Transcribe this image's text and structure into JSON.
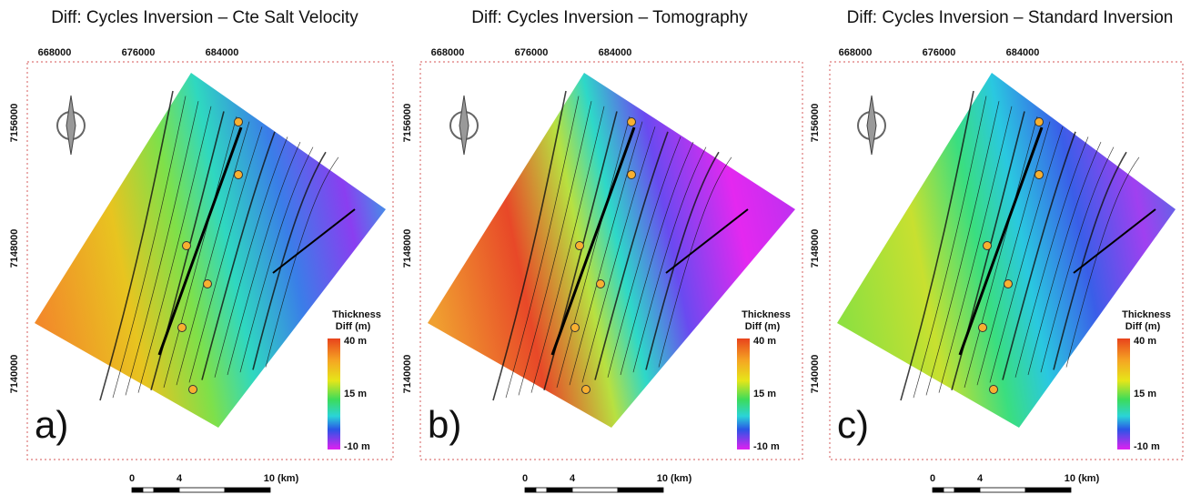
{
  "panels": [
    {
      "title": "Diff: Cycles Inversion – Cte Salt Velocity",
      "x_ticks": [
        "668000",
        "676000",
        "684000"
      ],
      "y_ticks": [
        "7156000",
        "7148000",
        "7140000"
      ],
      "legend": {
        "title_lines": [
          "Thickness",
          "Diff (m)"
        ],
        "labels": [
          "40 m",
          "15 m",
          "-10 m"
        ]
      },
      "panel_label": "a)",
      "scale_bar": [
        "0",
        "4",
        "10 (km)"
      ]
    },
    {
      "title": "Diff: Cycles Inversion – Tomography",
      "x_ticks": [
        "668000",
        "676000",
        "684000"
      ],
      "y_ticks": [
        "7156000",
        "7148000",
        "7140000"
      ],
      "legend": {
        "title_lines": [
          "Thickness",
          "Diff (m)"
        ],
        "labels": [
          "40 m",
          "15 m",
          "-10 m"
        ]
      },
      "panel_label": "b)",
      "scale_bar": [
        "0",
        "4",
        "10 (km)"
      ]
    },
    {
      "title": "Diff: Cycles Inversion – Standard Inversion",
      "x_ticks": [
        "668000",
        "676000",
        "684000"
      ],
      "y_ticks": [
        "7156000",
        "7148000",
        "7140000"
      ],
      "legend": {
        "title_lines": [
          "Thickness",
          "Diff (m)"
        ],
        "labels": [
          "40 m",
          "15 m",
          "-10 m"
        ]
      },
      "panel_label": "c)",
      "scale_bar": [
        "0",
        "4",
        "10 (km)"
      ]
    }
  ]
}
